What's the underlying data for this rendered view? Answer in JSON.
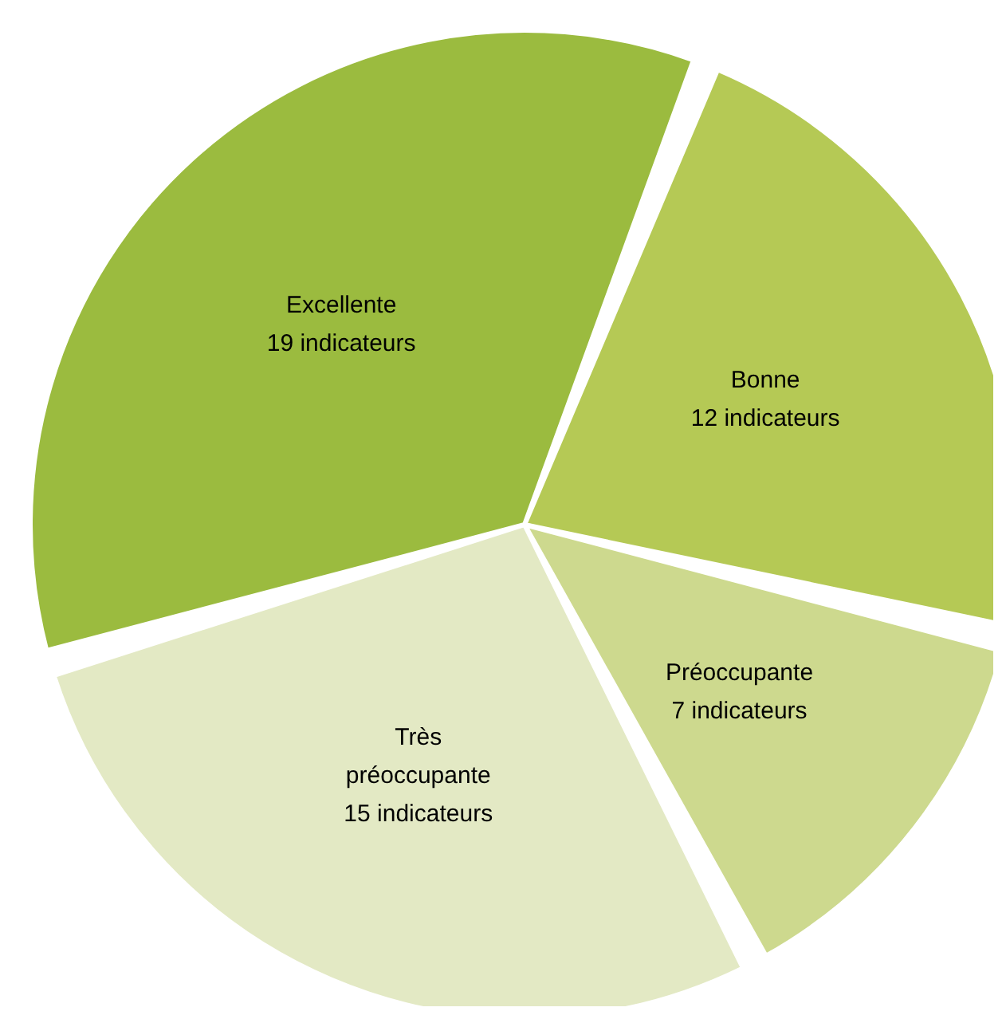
{
  "chart_data": {
    "type": "pie",
    "categories": [
      "Bonne",
      "Préoccupante",
      "Très préoccupante",
      "Excellente"
    ],
    "values": [
      12,
      7,
      15,
      19
    ],
    "value_labels": [
      "12 indicateurs",
      "7 indicateurs",
      "15 indicateurs",
      "19 indicateurs"
    ],
    "colors": [
      "#b5c955",
      "#cdd98e",
      "#e3e9c4",
      "#9bbb3f"
    ],
    "legend": false
  }
}
